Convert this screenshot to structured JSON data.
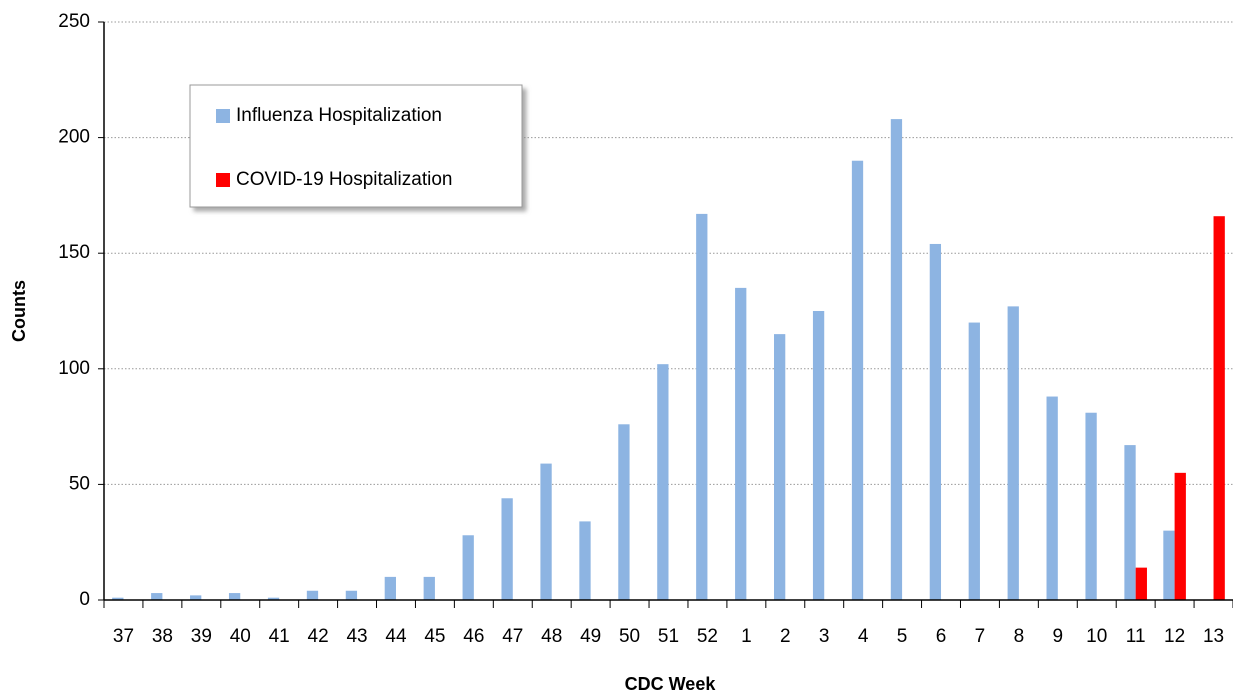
{
  "chart_data": {
    "type": "bar",
    "x_label": "CDC Week",
    "y_label": "Counts",
    "categories": [
      "37",
      "38",
      "39",
      "40",
      "41",
      "42",
      "43",
      "44",
      "45",
      "46",
      "47",
      "48",
      "49",
      "50",
      "51",
      "52",
      "1",
      "2",
      "3",
      "4",
      "5",
      "6",
      "7",
      "8",
      "9",
      "10",
      "11",
      "12",
      "13"
    ],
    "series": [
      {
        "name": "Influenza Hospitalization",
        "color": "#8db4e2",
        "values": [
          1,
          3,
          2,
          3,
          1,
          4,
          4,
          10,
          10,
          28,
          44,
          59,
          34,
          76,
          102,
          167,
          135,
          115,
          125,
          190,
          208,
          154,
          120,
          127,
          88,
          81,
          67,
          30,
          null
        ]
      },
      {
        "name": "COVID-19 Hospitalization",
        "color": "#ff0000",
        "values": [
          null,
          null,
          null,
          null,
          null,
          null,
          null,
          null,
          null,
          null,
          null,
          null,
          null,
          null,
          null,
          null,
          null,
          null,
          null,
          null,
          null,
          null,
          null,
          null,
          null,
          null,
          14,
          55,
          166
        ]
      }
    ],
    "ylim": [
      0,
      250
    ],
    "yticks": [
      0,
      50,
      100,
      150,
      200,
      250
    ],
    "grid": true,
    "legend": "upper left"
  }
}
